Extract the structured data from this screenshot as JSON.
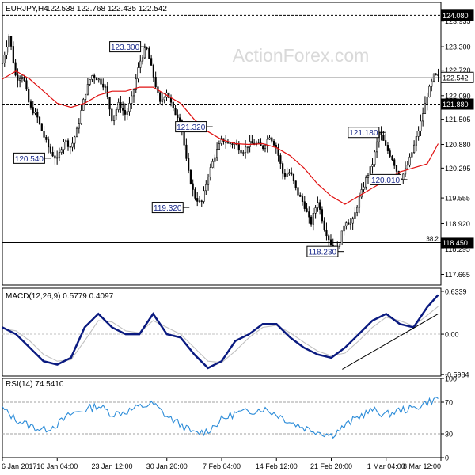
{
  "header": {
    "symbol_timeframe": "EURJPY,H4",
    "ohlc": "122.538 122.768 122.435 122.542"
  },
  "watermark": "ActionForex.com",
  "chart_data": [
    {
      "type": "candlestick-line",
      "panel": "price",
      "ylim": [
        117.4,
        124.4
      ],
      "y_ticks": [
        "123.935",
        "123.300",
        "122.720",
        "122.090",
        "121.505",
        "120.880",
        "120.295",
        "119.555",
        "118.920",
        "118.295",
        "117.665"
      ],
      "y_tick_values": [
        123.935,
        123.3,
        122.72,
        122.09,
        121.505,
        120.88,
        120.295,
        119.555,
        118.92,
        118.295,
        117.665
      ],
      "price_labels": [
        {
          "text": "124.080",
          "value": 124.08,
          "style": "dashed"
        },
        {
          "text": "122.542",
          "value": 122.542,
          "style": "current"
        },
        {
          "text": "121.880",
          "value": 121.88,
          "style": "dashed"
        },
        {
          "text": "118.450",
          "value": 118.45,
          "style": "solid"
        }
      ],
      "fib_label": "38.2",
      "annotations": [
        {
          "text": "123.300",
          "x": 10.2,
          "y": 123.3,
          "anchor": "right"
        },
        {
          "text": "120.540",
          "x": 3.2,
          "y": 120.54,
          "anchor": "right"
        },
        {
          "text": "121.320",
          "x": 15.0,
          "y": 121.32,
          "anchor": "right"
        },
        {
          "text": "119.320",
          "x": 13.3,
          "y": 119.32,
          "anchor": "right"
        },
        {
          "text": "118.230",
          "x": 24.6,
          "y": 118.23,
          "anchor": "right"
        },
        {
          "text": "121.180",
          "x": 27.6,
          "y": 121.18,
          "anchor": "right"
        },
        {
          "text": "120.010",
          "x": 29.2,
          "y": 120.01,
          "anchor": "right"
        }
      ],
      "close_path": [
        [
          0,
          122.9
        ],
        [
          0.5,
          123.6
        ],
        [
          1,
          122.5
        ],
        [
          1.5,
          122.6
        ],
        [
          2,
          121.8
        ],
        [
          2.5,
          121.6
        ],
        [
          3,
          121.1
        ],
        [
          3.5,
          120.7
        ],
        [
          4,
          120.5
        ],
        [
          4.5,
          121.0
        ],
        [
          5,
          120.8
        ],
        [
          5.5,
          121.3
        ],
        [
          6,
          122.1
        ],
        [
          6.5,
          122.6
        ],
        [
          7,
          122.5
        ],
        [
          7.5,
          122.3
        ],
        [
          8,
          121.5
        ],
        [
          8.5,
          121.9
        ],
        [
          9,
          121.6
        ],
        [
          9.5,
          122.1
        ],
        [
          10,
          122.9
        ],
        [
          10.5,
          123.3
        ],
        [
          11,
          122.6
        ],
        [
          11.5,
          121.9
        ],
        [
          12,
          122.2
        ],
        [
          12.5,
          121.7
        ],
        [
          13,
          121.5
        ],
        [
          13.5,
          120.3
        ],
        [
          14,
          119.6
        ],
        [
          14.5,
          119.4
        ],
        [
          15,
          120.1
        ],
        [
          15.5,
          120.6
        ],
        [
          16,
          121.0
        ],
        [
          16.5,
          120.9
        ],
        [
          17,
          120.9
        ],
        [
          17.5,
          120.7
        ],
        [
          18,
          120.9
        ],
        [
          18.5,
          120.9
        ],
        [
          19,
          120.8
        ],
        [
          19.5,
          121.1
        ],
        [
          20,
          120.8
        ],
        [
          20.5,
          120.1
        ],
        [
          21,
          120.2
        ],
        [
          21.5,
          119.7
        ],
        [
          22,
          119.4
        ],
        [
          22.5,
          118.9
        ],
        [
          23,
          119.5
        ],
        [
          23.5,
          118.8
        ],
        [
          24,
          118.4
        ],
        [
          24.5,
          118.3
        ],
        [
          25,
          119.0
        ],
        [
          25.5,
          118.9
        ],
        [
          26,
          119.5
        ],
        [
          26.5,
          120.0
        ],
        [
          27,
          120.4
        ],
        [
          27.5,
          121.2
        ],
        [
          28,
          120.8
        ],
        [
          28.5,
          120.5
        ],
        [
          29,
          120.0
        ],
        [
          29.5,
          120.3
        ],
        [
          30,
          120.8
        ],
        [
          30.5,
          121.4
        ],
        [
          31,
          122.1
        ],
        [
          31.5,
          122.6
        ],
        [
          31.8,
          122.542
        ]
      ],
      "ma_path": [
        [
          0,
          122.5
        ],
        [
          1,
          122.7
        ],
        [
          2,
          122.5
        ],
        [
          3,
          122.2
        ],
        [
          4,
          121.9
        ],
        [
          5,
          121.8
        ],
        [
          6,
          121.9
        ],
        [
          7,
          122.1
        ],
        [
          8,
          122.2
        ],
        [
          9,
          122.2
        ],
        [
          10,
          122.3
        ],
        [
          11,
          122.3
        ],
        [
          12,
          122.1
        ],
        [
          13,
          121.9
        ],
        [
          14,
          121.5
        ],
        [
          15,
          121.2
        ],
        [
          16,
          121.0
        ],
        [
          17,
          120.9
        ],
        [
          18,
          120.88
        ],
        [
          19,
          120.9
        ],
        [
          20,
          120.8
        ],
        [
          21,
          120.6
        ],
        [
          22,
          120.3
        ],
        [
          23,
          119.9
        ],
        [
          24,
          119.6
        ],
        [
          25,
          119.4
        ],
        [
          26,
          119.6
        ],
        [
          27,
          119.8
        ],
        [
          28,
          120.0
        ],
        [
          29,
          120.2
        ],
        [
          30,
          120.3
        ],
        [
          31,
          120.4
        ],
        [
          31.8,
          120.9
        ]
      ]
    },
    {
      "type": "line",
      "panel": "macd",
      "label": "MACD(12,26,9) 0.5779 0.4097",
      "ylim": [
        -0.62,
        0.68
      ],
      "y_ticks": [
        "0.6339",
        "0.00",
        "-0.5984"
      ],
      "y_tick_values": [
        0.6339,
        0.0,
        -0.5984
      ],
      "series": [
        {
          "role": "macd",
          "values": [
            [
              0,
              0.1
            ],
            [
              1,
              0.0
            ],
            [
              2,
              -0.2
            ],
            [
              3,
              -0.4
            ],
            [
              4,
              -0.45
            ],
            [
              5,
              -0.35
            ],
            [
              6,
              0.1
            ],
            [
              7,
              0.3
            ],
            [
              8,
              0.1
            ],
            [
              9,
              0.0
            ],
            [
              10,
              0.0
            ],
            [
              11,
              0.3
            ],
            [
              12,
              0.0
            ],
            [
              13,
              -0.05
            ],
            [
              14,
              -0.3
            ],
            [
              15,
              -0.5
            ],
            [
              16,
              -0.4
            ],
            [
              17,
              -0.1
            ],
            [
              18,
              0.0
            ],
            [
              19,
              0.15
            ],
            [
              20,
              0.15
            ],
            [
              21,
              -0.05
            ],
            [
              22,
              -0.2
            ],
            [
              23,
              -0.3
            ],
            [
              24,
              -0.35
            ],
            [
              25,
              -0.2
            ],
            [
              26,
              0.0
            ],
            [
              27,
              0.2
            ],
            [
              28,
              0.3
            ],
            [
              29,
              0.15
            ],
            [
              30,
              0.1
            ],
            [
              31,
              0.4
            ],
            [
              31.8,
              0.58
            ]
          ]
        },
        {
          "role": "signal",
          "values": [
            [
              0,
              0.08
            ],
            [
              1,
              0.05
            ],
            [
              2,
              -0.1
            ],
            [
              3,
              -0.3
            ],
            [
              4,
              -0.4
            ],
            [
              5,
              -0.38
            ],
            [
              6,
              -0.1
            ],
            [
              7,
              0.2
            ],
            [
              8,
              0.18
            ],
            [
              9,
              0.05
            ],
            [
              10,
              0.02
            ],
            [
              11,
              0.2
            ],
            [
              12,
              0.1
            ],
            [
              13,
              0.0
            ],
            [
              14,
              -0.2
            ],
            [
              15,
              -0.4
            ],
            [
              16,
              -0.42
            ],
            [
              17,
              -0.25
            ],
            [
              18,
              -0.05
            ],
            [
              19,
              0.1
            ],
            [
              20,
              0.13
            ],
            [
              21,
              0.02
            ],
            [
              22,
              -0.12
            ],
            [
              23,
              -0.25
            ],
            [
              24,
              -0.32
            ],
            [
              25,
              -0.28
            ],
            [
              26,
              -0.1
            ],
            [
              27,
              0.1
            ],
            [
              28,
              0.25
            ],
            [
              29,
              0.2
            ],
            [
              30,
              0.12
            ],
            [
              31,
              0.28
            ],
            [
              31.8,
              0.41
            ]
          ]
        }
      ],
      "trendline": [
        [
          24.8,
          -0.52
        ],
        [
          31.8,
          0.3
        ]
      ]
    },
    {
      "type": "line",
      "panel": "rsi",
      "label": "RSI(14) 74.5410",
      "ylim": [
        0,
        100
      ],
      "y_ticks": [
        "100",
        "70",
        "30",
        "0"
      ],
      "y_tick_values": [
        100,
        70,
        30,
        0
      ],
      "levels": [
        70,
        30
      ],
      "series": [
        {
          "role": "rsi",
          "values": [
            [
              0,
              62
            ],
            [
              1,
              48
            ],
            [
              2,
              40
            ],
            [
              3,
              35
            ],
            [
              4,
              42
            ],
            [
              5,
              55
            ],
            [
              6,
              60
            ],
            [
              7,
              66
            ],
            [
              8,
              55
            ],
            [
              9,
              58
            ],
            [
              10,
              64
            ],
            [
              11,
              68
            ],
            [
              12,
              52
            ],
            [
              13,
              42
            ],
            [
              14,
              30
            ],
            [
              15,
              34
            ],
            [
              16,
              48
            ],
            [
              17,
              56
            ],
            [
              18,
              58
            ],
            [
              19,
              62
            ],
            [
              20,
              55
            ],
            [
              21,
              45
            ],
            [
              22,
              38
            ],
            [
              23,
              33
            ],
            [
              24,
              28
            ],
            [
              25,
              40
            ],
            [
              26,
              52
            ],
            [
              27,
              60
            ],
            [
              28,
              54
            ],
            [
              29,
              60
            ],
            [
              30,
              62
            ],
            [
              31,
              70
            ],
            [
              31.8,
              74.5
            ]
          ]
        }
      ]
    }
  ],
  "x_axis": {
    "labels": [
      "6 Jan 2017",
      "16 Jan 04:00",
      "23 Jan 12:00",
      "30 Jan 20:00",
      "7 Feb 04:00",
      "14 Feb 12:00",
      "21 Feb 20:00",
      "1 Mar 04:00",
      "8 Mar 12:00"
    ],
    "positions": [
      0,
      4,
      8,
      12,
      16,
      20,
      24,
      28,
      32
    ]
  }
}
